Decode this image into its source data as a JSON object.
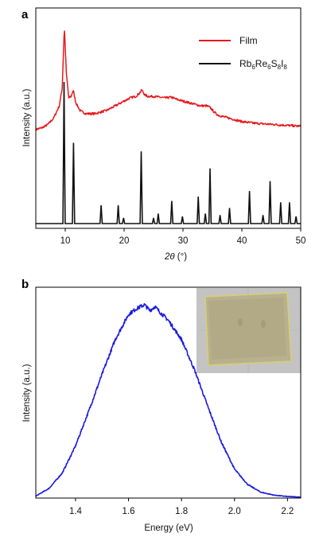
{
  "chart_data": [
    {
      "panel_label": "a",
      "type": "line",
      "xlabel_var": "2θ",
      "xlabel_unit": " (°)",
      "ylabel": "Intensity (a.u.)",
      "xlim": [
        5,
        50
      ],
      "xticks": [
        10,
        20,
        30,
        40,
        50
      ],
      "legend_position": "top-right",
      "series": [
        {
          "name": "Film",
          "color": "#e8191c",
          "kind": "broad-xrd",
          "x": [
            5,
            6,
            7,
            8,
            9,
            9.5,
            9.85,
            10.2,
            10.6,
            11.0,
            11.35,
            11.8,
            12.5,
            13.5,
            15,
            16,
            17,
            18,
            19,
            20,
            21,
            22,
            22.6,
            23,
            23.5,
            24,
            25,
            26,
            27,
            28,
            29,
            30,
            31,
            32,
            33,
            34,
            34.6,
            35.3,
            36,
            37,
            38,
            39,
            40,
            42,
            44,
            46,
            48,
            50
          ],
          "y": [
            0.35,
            0.36,
            0.38,
            0.42,
            0.5,
            0.62,
            1.0,
            0.7,
            0.55,
            0.56,
            0.6,
            0.52,
            0.47,
            0.45,
            0.45,
            0.46,
            0.47,
            0.49,
            0.51,
            0.53,
            0.55,
            0.56,
            0.58,
            0.6,
            0.57,
            0.56,
            0.56,
            0.555,
            0.55,
            0.555,
            0.54,
            0.53,
            0.52,
            0.51,
            0.5,
            0.5,
            0.49,
            0.46,
            0.44,
            0.43,
            0.42,
            0.41,
            0.4,
            0.39,
            0.385,
            0.38,
            0.375,
            0.37
          ]
        },
        {
          "name": "Rb6Re6S8I8",
          "name_parts": [
            "Rb",
            "6",
            "Re",
            "6",
            "S",
            "8",
            "I",
            "8"
          ],
          "color": "#111111",
          "kind": "sticks",
          "peaks": [
            {
              "x": 9.8,
              "y": 1.0
            },
            {
              "x": 11.4,
              "y": 0.57
            },
            {
              "x": 16.1,
              "y": 0.13
            },
            {
              "x": 19.0,
              "y": 0.13
            },
            {
              "x": 19.9,
              "y": 0.04
            },
            {
              "x": 22.9,
              "y": 0.51
            },
            {
              "x": 25.0,
              "y": 0.04
            },
            {
              "x": 25.8,
              "y": 0.07
            },
            {
              "x": 28.1,
              "y": 0.16
            },
            {
              "x": 29.9,
              "y": 0.05
            },
            {
              "x": 32.6,
              "y": 0.19
            },
            {
              "x": 33.8,
              "y": 0.07
            },
            {
              "x": 34.6,
              "y": 0.39
            },
            {
              "x": 36.3,
              "y": 0.06
            },
            {
              "x": 37.9,
              "y": 0.11
            },
            {
              "x": 41.3,
              "y": 0.23
            },
            {
              "x": 43.6,
              "y": 0.06
            },
            {
              "x": 44.8,
              "y": 0.3
            },
            {
              "x": 46.6,
              "y": 0.15
            },
            {
              "x": 48.1,
              "y": 0.15
            },
            {
              "x": 49.2,
              "y": 0.05
            }
          ]
        }
      ]
    },
    {
      "panel_label": "b",
      "type": "line",
      "xlabel": "Energy (eV)",
      "ylabel": "Intensity (a.u.)",
      "xlim": [
        1.25,
        2.25
      ],
      "xticks": [
        1.4,
        1.6,
        1.8,
        2.0,
        2.2
      ],
      "xtick_labels": [
        "1.4",
        "1.6",
        "1.8",
        "2.0",
        "2.2"
      ],
      "inset": "photograph of film",
      "series": [
        {
          "name": "",
          "color": "#1b1be0",
          "kind": "pl",
          "x": [
            1.25,
            1.3,
            1.35,
            1.4,
            1.45,
            1.5,
            1.55,
            1.6,
            1.63,
            1.66,
            1.68,
            1.7,
            1.72,
            1.75,
            1.8,
            1.85,
            1.9,
            1.95,
            2.0,
            2.05,
            2.1,
            2.15,
            2.2,
            2.25
          ],
          "y": [
            0.01,
            0.05,
            0.13,
            0.27,
            0.45,
            0.64,
            0.82,
            0.95,
            0.98,
            1.0,
            0.97,
            0.99,
            0.96,
            0.92,
            0.82,
            0.66,
            0.47,
            0.29,
            0.15,
            0.07,
            0.03,
            0.015,
            0.008,
            0.005
          ]
        }
      ]
    }
  ]
}
